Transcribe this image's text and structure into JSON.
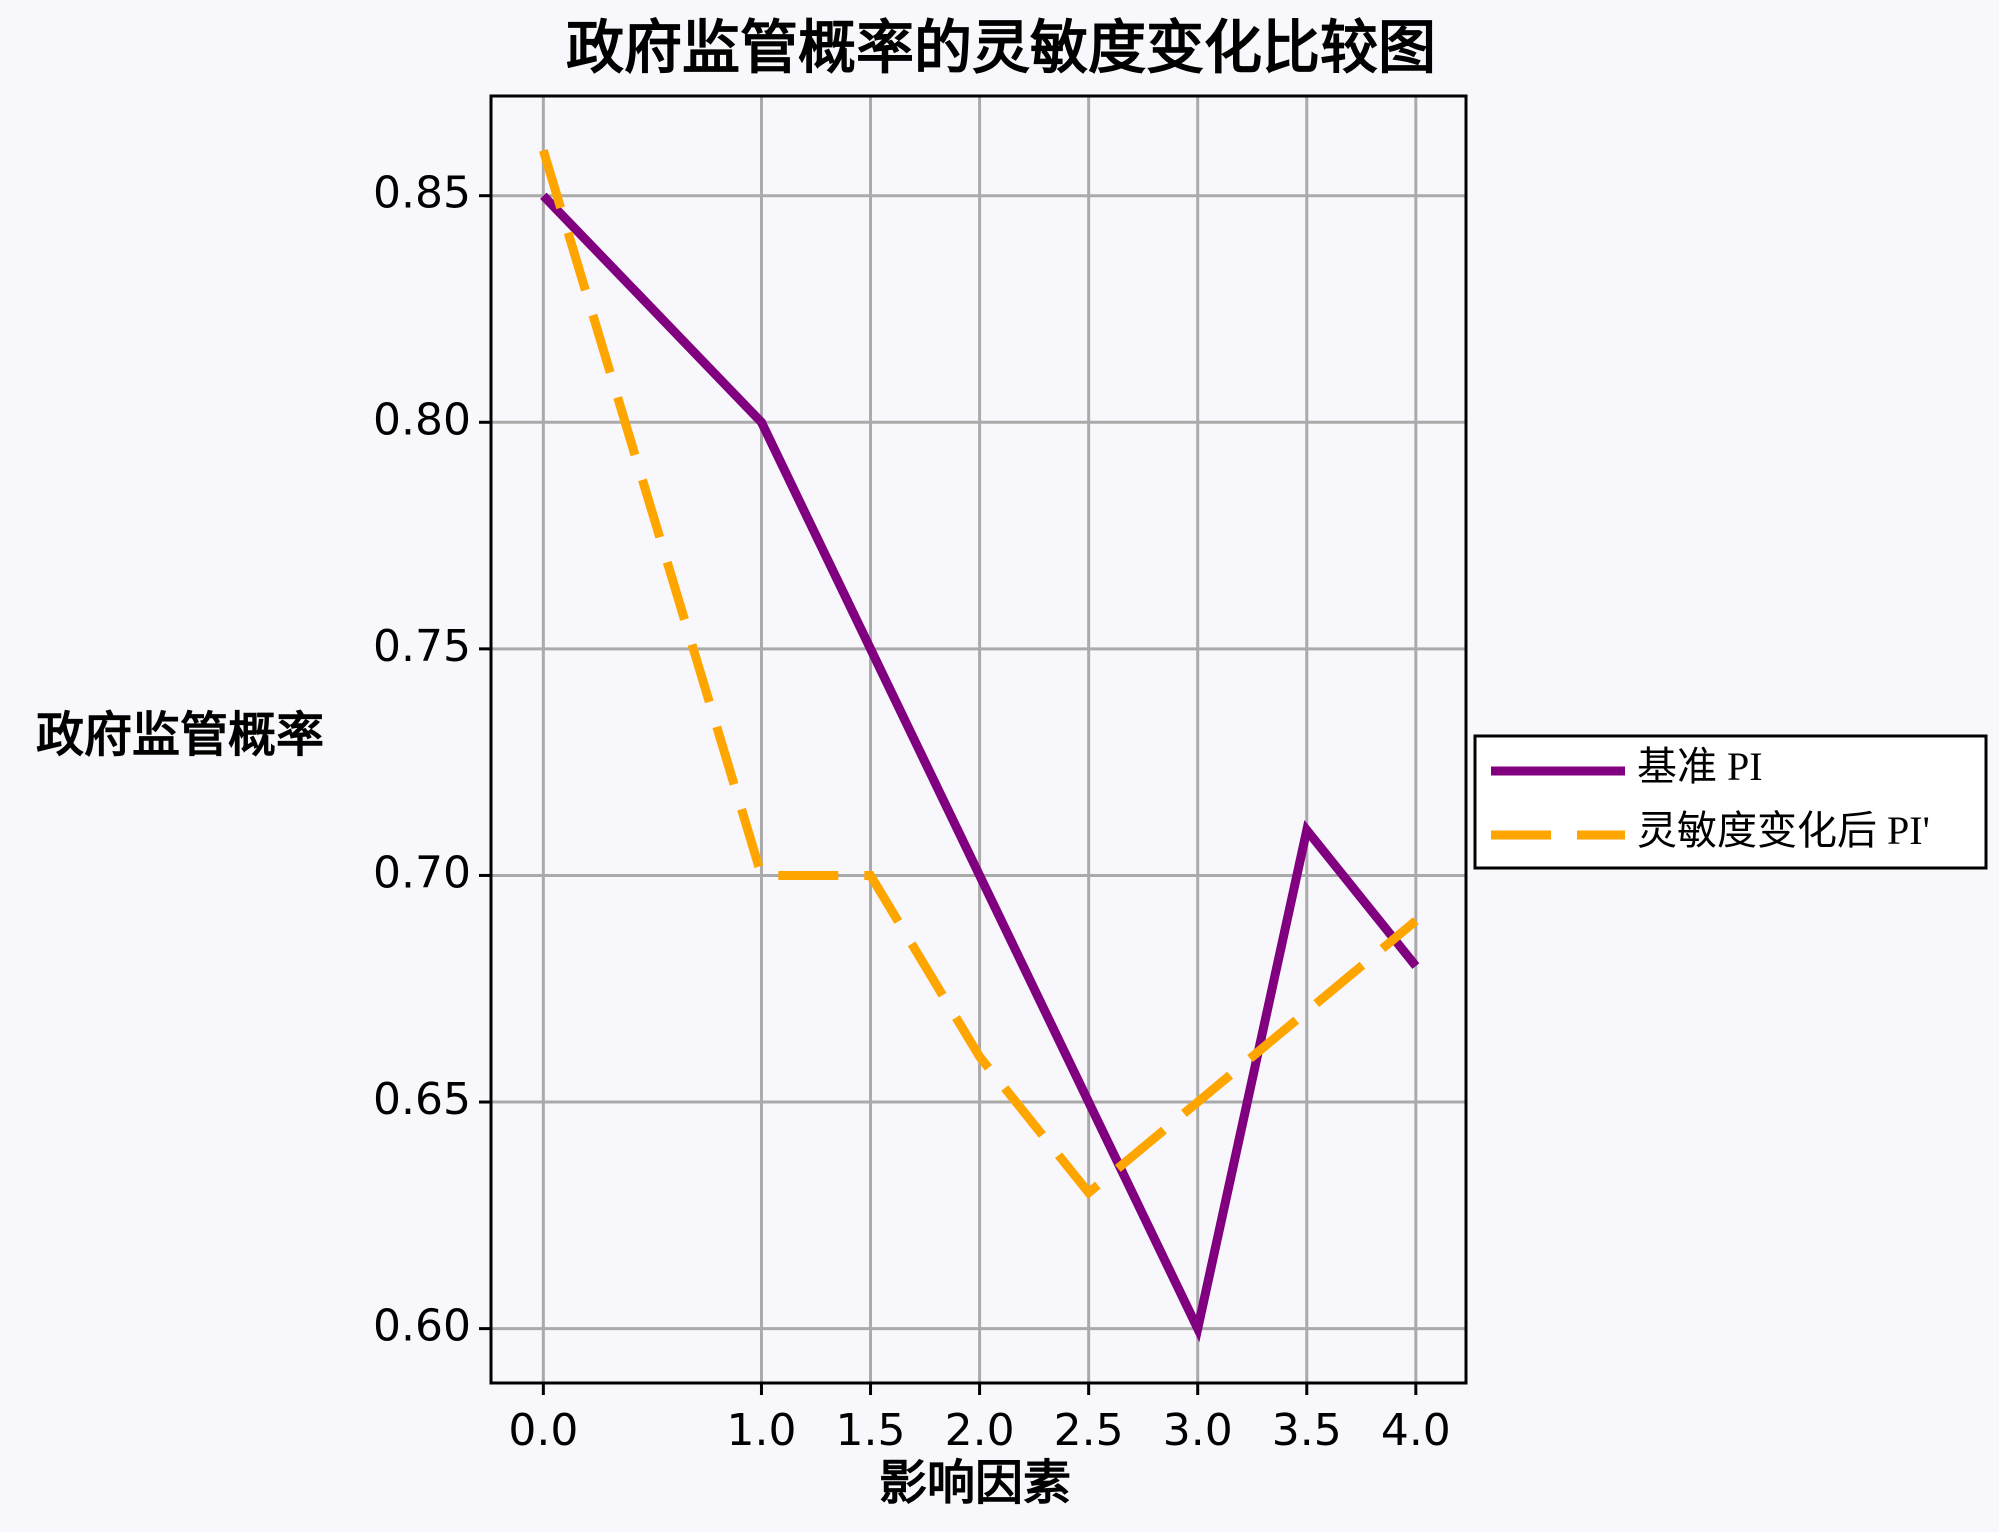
{
  "chart_data": {
    "type": "line",
    "title": "政府监管概率的灵敏度变化比较图",
    "x_label": "影响因素",
    "y_label": "政府监管概率",
    "x": [
      0,
      1,
      1.5,
      2,
      2.5,
      3,
      3.5,
      4
    ],
    "series": [
      {
        "name": "基准 PI",
        "color": "#800080",
        "dash": "solid",
        "values": [
          0.85,
          0.8,
          0.75,
          0.7,
          0.65,
          0.6,
          0.71,
          0.68
        ]
      },
      {
        "name": "灵敏度变化后 PI'",
        "color": "#ffa500",
        "dash": "dashed",
        "values": [
          0.86,
          0.7,
          0.7,
          0.66,
          0.63,
          0.65,
          0.67,
          0.69
        ]
      }
    ],
    "xlim": [
      -0.24,
      4.23
    ],
    "ylim": [
      0.588,
      0.872
    ],
    "xticks": [
      {
        "value": 0,
        "label": "0.0"
      },
      {
        "value": 1,
        "label": "1.0"
      },
      1.5,
      {
        "value": 2,
        "label": "2.0"
      },
      2.5,
      {
        "value": 3,
        "label": "3.0"
      },
      3.5,
      {
        "value": 4,
        "label": "4.0"
      }
    ],
    "yticks": [
      {
        "value": 0.6,
        "label": "0.60"
      },
      0.65,
      {
        "value": 0.7,
        "label": "0.70"
      },
      0.75,
      {
        "value": 0.8,
        "label": "0.80"
      },
      0.85
    ],
    "grid": true,
    "legend": "right"
  }
}
